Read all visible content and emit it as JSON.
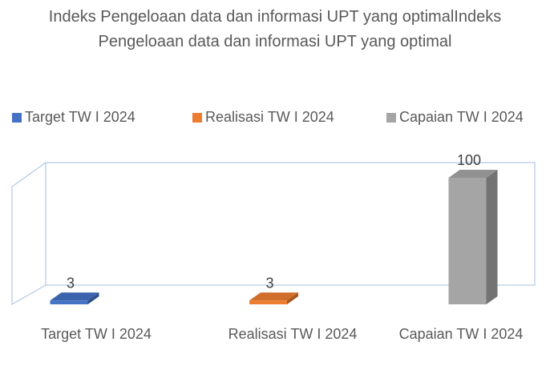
{
  "chart_data": {
    "type": "bar3d",
    "title": "Indeks Pengeloaan data dan informasi UPT yang optimalIndeks Pengeloaan data dan informasi UPT yang optimal",
    "categories": [
      "Target TW I 2024",
      "Realisasi TW I 2024",
      "Capaian TW I 2024"
    ],
    "series": [
      {
        "name": "Target TW I 2024",
        "color": "#4472c4",
        "values": [
          3,
          null,
          null
        ]
      },
      {
        "name": "Realisasi TW I 2024",
        "color": "#ed7d31",
        "values": [
          null,
          3,
          null
        ]
      },
      {
        "name": "Capaian TW I 2024",
        "color": "#a5a5a5",
        "values": [
          null,
          null,
          100
        ]
      }
    ],
    "ylim": [
      0,
      100
    ],
    "legend": "top"
  }
}
